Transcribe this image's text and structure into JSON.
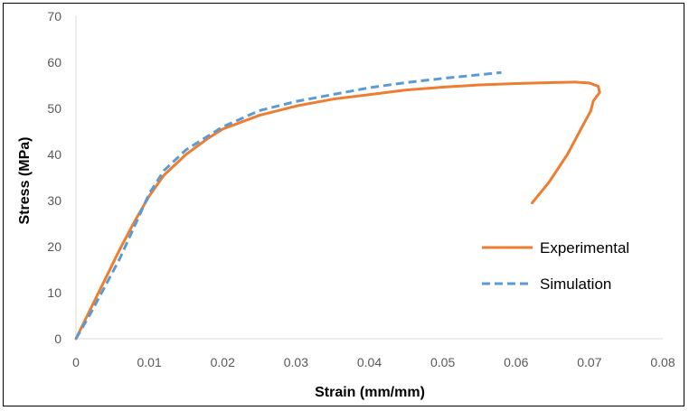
{
  "chart_data": {
    "type": "line",
    "title": "",
    "xlabel": "Strain (mm/mm)",
    "ylabel": "Stress (MPa)",
    "xlim": [
      0,
      0.08
    ],
    "ylim": [
      0,
      70
    ],
    "x_ticks": [
      "0",
      "0.01",
      "0.02",
      "0.03",
      "0.04",
      "0.05",
      "0.06",
      "0.07",
      "0.08"
    ],
    "y_ticks": [
      "0",
      "10",
      "20",
      "30",
      "40",
      "50",
      "60",
      "70"
    ],
    "grid": false,
    "legend_position": "right",
    "series": [
      {
        "name": "Experimental",
        "color": "#ED7D31",
        "line_style": "solid",
        "points": [
          [
            0,
            0
          ],
          [
            0.002,
            6.5
          ],
          [
            0.004,
            13
          ],
          [
            0.006,
            19.5
          ],
          [
            0.008,
            25.5
          ],
          [
            0.01,
            31
          ],
          [
            0.012,
            35.5
          ],
          [
            0.015,
            40
          ],
          [
            0.018,
            43.5
          ],
          [
            0.02,
            45.5
          ],
          [
            0.025,
            48.5
          ],
          [
            0.03,
            50.5
          ],
          [
            0.035,
            52
          ],
          [
            0.04,
            53
          ],
          [
            0.045,
            54
          ],
          [
            0.05,
            54.6
          ],
          [
            0.055,
            55.1
          ],
          [
            0.06,
            55.4
          ],
          [
            0.065,
            55.6
          ],
          [
            0.068,
            55.7
          ],
          [
            0.07,
            55.5
          ],
          [
            0.0712,
            54.8
          ],
          [
            0.0714,
            53.5
          ],
          [
            0.0705,
            51.5
          ],
          [
            0.0702,
            49.5
          ],
          [
            0.069,
            46
          ],
          [
            0.067,
            40
          ],
          [
            0.0645,
            34
          ],
          [
            0.0622,
            29.5
          ]
        ]
      },
      {
        "name": "Simulation",
        "color": "#5B9BD5",
        "line_style": "dashed",
        "points": [
          [
            0,
            0
          ],
          [
            0.002,
            5.5
          ],
          [
            0.004,
            11.5
          ],
          [
            0.006,
            17.5
          ],
          [
            0.008,
            24.5
          ],
          [
            0.01,
            31.5
          ],
          [
            0.012,
            36.5
          ],
          [
            0.015,
            41
          ],
          [
            0.018,
            44
          ],
          [
            0.02,
            46
          ],
          [
            0.025,
            49.5
          ],
          [
            0.03,
            51.5
          ],
          [
            0.035,
            53
          ],
          [
            0.04,
            54.5
          ],
          [
            0.045,
            55.6
          ],
          [
            0.05,
            56.5
          ],
          [
            0.055,
            57.3
          ],
          [
            0.058,
            57.8
          ]
        ]
      }
    ]
  }
}
